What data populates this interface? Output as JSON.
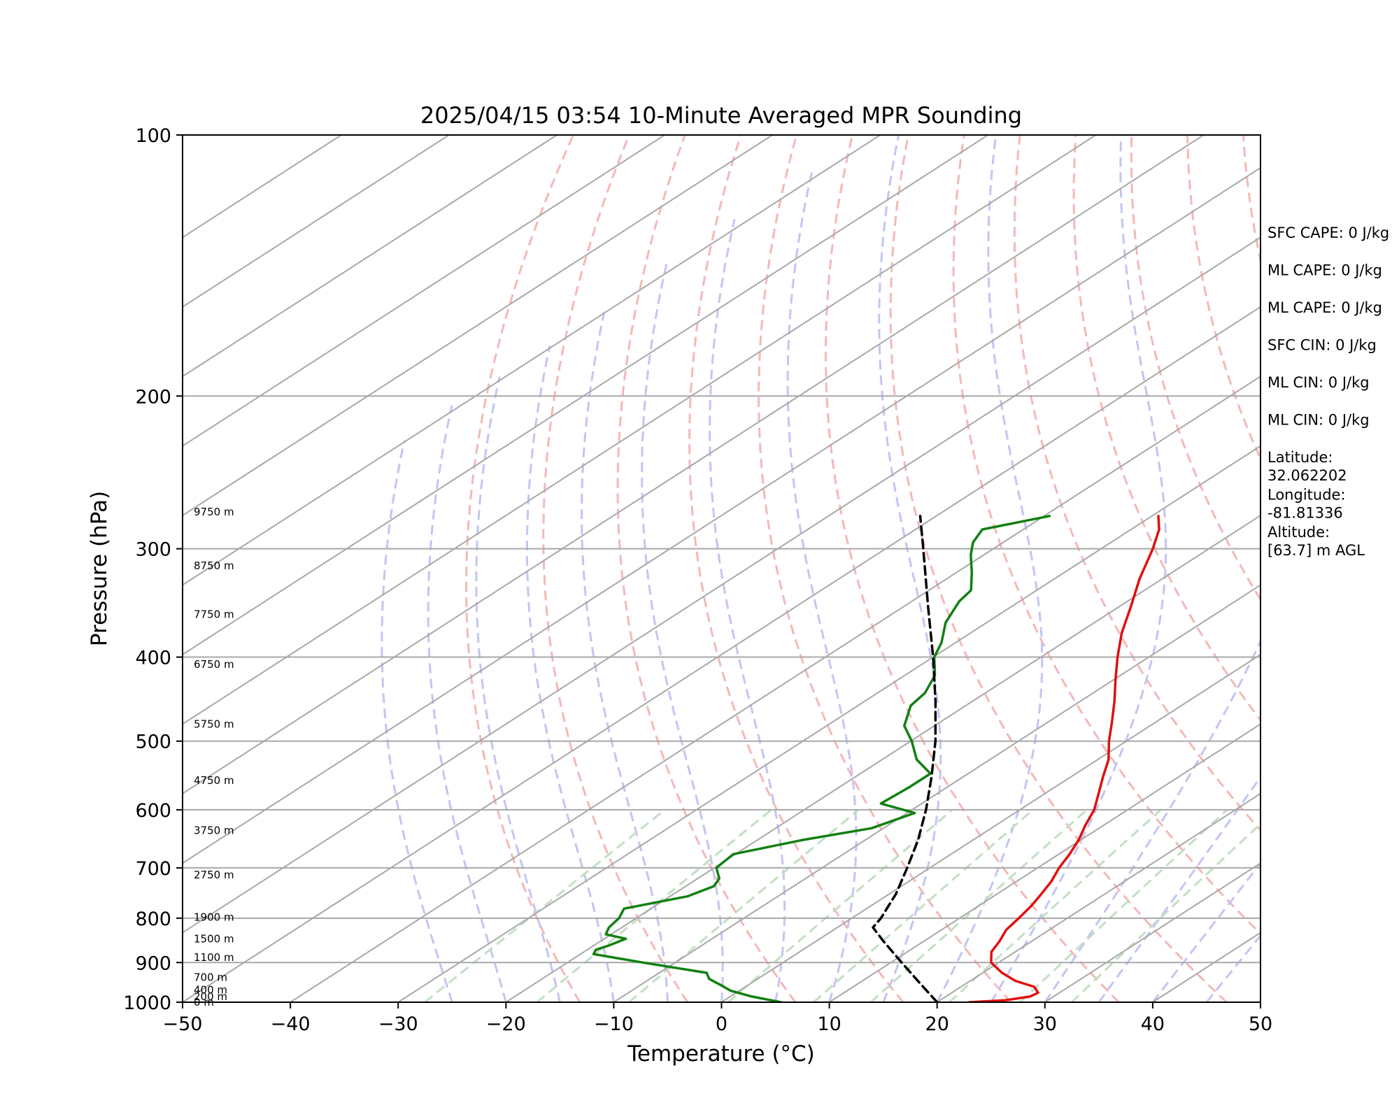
{
  "chart_data": {
    "type": "line",
    "diagram": "skew-t log-p",
    "title": "2025/04/15 03:54 10-Minute Averaged MPR Sounding",
    "xlabel": "Temperature (°C)",
    "ylabel": "Pressure (hPa)",
    "xlim": [
      -50,
      50
    ],
    "ylim": [
      1000,
      100
    ],
    "yscale": "log",
    "grid": true,
    "x_ticks": [
      "−50",
      "−40",
      "−30",
      "−20",
      "−10",
      "0",
      "10",
      "20",
      "30",
      "40",
      "50"
    ],
    "y_ticks": [
      "100",
      "200",
      "300",
      "400",
      "500",
      "600",
      "700",
      "800",
      "900",
      "1000"
    ],
    "colors": {
      "temperature": "#e01010",
      "dewpoint": "#118011",
      "parcel": "#000000",
      "dry_adiabats": "#f4b8b8",
      "moist_adiabats": "#c4c4f4",
      "mixing_ratio_lines": "#c2dfc2",
      "grid": "#a8a8a8"
    },
    "series": [
      {
        "key": "temperature",
        "points": [
          {
            "p": 1000,
            "t": 23.0
          },
          {
            "p": 995,
            "t": 26.0
          },
          {
            "p": 985,
            "t": 27.8
          },
          {
            "p": 975,
            "t": 28.0
          },
          {
            "p": 960,
            "t": 26.8
          },
          {
            "p": 945,
            "t": 24.2
          },
          {
            "p": 925,
            "t": 21.8
          },
          {
            "p": 900,
            "t": 19.3
          },
          {
            "p": 875,
            "t": 17.8
          },
          {
            "p": 850,
            "t": 17.0
          },
          {
            "p": 825,
            "t": 16.0
          },
          {
            "p": 800,
            "t": 15.5
          },
          {
            "p": 775,
            "t": 14.9
          },
          {
            "p": 750,
            "t": 14.1
          },
          {
            "p": 725,
            "t": 13.2
          },
          {
            "p": 700,
            "t": 12.0
          },
          {
            "p": 675,
            "t": 11.0
          },
          {
            "p": 650,
            "t": 9.8
          },
          {
            "p": 625,
            "t": 8.3
          },
          {
            "p": 600,
            "t": 6.9
          },
          {
            "p": 575,
            "t": 5.0
          },
          {
            "p": 550,
            "t": 3.0
          },
          {
            "p": 525,
            "t": 1.0
          },
          {
            "p": 500,
            "t": -1.6
          },
          {
            "p": 475,
            "t": -4.1
          },
          {
            "p": 450,
            "t": -6.8
          },
          {
            "p": 425,
            "t": -9.8
          },
          {
            "p": 400,
            "t": -12.9
          },
          {
            "p": 375,
            "t": -16.0
          },
          {
            "p": 350,
            "t": -18.9
          },
          {
            "p": 325,
            "t": -22.1
          },
          {
            "p": 300,
            "t": -25.2
          },
          {
            "p": 285,
            "t": -27.4
          },
          {
            "p": 275,
            "t": -29.4
          }
        ]
      },
      {
        "key": "dewpoint",
        "points": [
          {
            "p": 1000,
            "t": 5.5
          },
          {
            "p": 985,
            "t": 2.0
          },
          {
            "p": 970,
            "t": -0.8
          },
          {
            "p": 955,
            "t": -2.6
          },
          {
            "p": 940,
            "t": -4.5
          },
          {
            "p": 925,
            "t": -5.6
          },
          {
            "p": 900,
            "t": -13.0
          },
          {
            "p": 880,
            "t": -18.8
          },
          {
            "p": 870,
            "t": -19.2
          },
          {
            "p": 860,
            "t": -18.6
          },
          {
            "p": 845,
            "t": -18.0
          },
          {
            "p": 835,
            "t": -20.5
          },
          {
            "p": 820,
            "t": -21.2
          },
          {
            "p": 800,
            "t": -21.6
          },
          {
            "p": 780,
            "t": -22.5
          },
          {
            "p": 755,
            "t": -18.4
          },
          {
            "p": 735,
            "t": -17.4
          },
          {
            "p": 720,
            "t": -18.0
          },
          {
            "p": 700,
            "t": -19.8
          },
          {
            "p": 675,
            "t": -20.2
          },
          {
            "p": 650,
            "t": -15.8
          },
          {
            "p": 630,
            "t": -11.1
          },
          {
            "p": 605,
            "t": -9.3
          },
          {
            "p": 590,
            "t": -13.8
          },
          {
            "p": 565,
            "t": -13.5
          },
          {
            "p": 545,
            "t": -13.5
          },
          {
            "p": 525,
            "t": -16.8
          },
          {
            "p": 500,
            "t": -19.9
          },
          {
            "p": 480,
            "t": -22.8
          },
          {
            "p": 455,
            "t": -25.1
          },
          {
            "p": 440,
            "t": -25.6
          },
          {
            "p": 420,
            "t": -27.2
          },
          {
            "p": 400,
            "t": -29.9
          },
          {
            "p": 385,
            "t": -31.3
          },
          {
            "p": 365,
            "t": -33.8
          },
          {
            "p": 345,
            "t": -35.6
          },
          {
            "p": 335,
            "t": -36.1
          },
          {
            "p": 320,
            "t": -38.5
          },
          {
            "p": 305,
            "t": -41.2
          },
          {
            "p": 295,
            "t": -42.8
          },
          {
            "p": 285,
            "t": -43.8
          },
          {
            "p": 275,
            "t": -39.5
          }
        ]
      },
      {
        "key": "parcel",
        "points": [
          {
            "p": 1000,
            "t": 20.0
          },
          {
            "p": 950,
            "t": 15.6
          },
          {
            "p": 900,
            "t": 11.0
          },
          {
            "p": 850,
            "t": 6.2
          },
          {
            "p": 820,
            "t": 3.3
          },
          {
            "p": 800,
            "t": 2.7
          },
          {
            "p": 750,
            "t": 0.6
          },
          {
            "p": 700,
            "t": -2.1
          },
          {
            "p": 650,
            "t": -5.1
          },
          {
            "p": 600,
            "t": -8.7
          },
          {
            "p": 550,
            "t": -12.9
          },
          {
            "p": 500,
            "t": -17.7
          },
          {
            "p": 450,
            "t": -23.4
          },
          {
            "p": 400,
            "t": -30.0
          },
          {
            "p": 350,
            "t": -37.7
          },
          {
            "p": 300,
            "t": -46.5
          },
          {
            "p": 275,
            "t": -51.5
          }
        ]
      }
    ],
    "height_labels": [
      {
        "text": "9750 m",
        "p": 272
      },
      {
        "text": "8750 m",
        "p": 314
      },
      {
        "text": "7750 m",
        "p": 357
      },
      {
        "text": "6750 m",
        "p": 408
      },
      {
        "text": "5750 m",
        "p": 478
      },
      {
        "text": "4750 m",
        "p": 555
      },
      {
        "text": "3750 m",
        "p": 634
      },
      {
        "text": "2750 m",
        "p": 713
      },
      {
        "text": "1900 m",
        "p": 798
      },
      {
        "text": "1500 m",
        "p": 845
      },
      {
        "text": "1100 m",
        "p": 888
      },
      {
        "text": "700 m",
        "p": 936
      },
      {
        "text": "400 m",
        "p": 968
      },
      {
        "text": "200 m",
        "p": 985
      },
      {
        "text": "0 m",
        "p": 1000
      }
    ],
    "stats": [
      [
        "SFC CAPE: 0 J/kg"
      ],
      [
        "ML CAPE: 0 J/kg"
      ],
      [
        "ML CAPE: 0 J/kg"
      ],
      [
        "SFC CIN: 0 J/kg"
      ],
      [
        "ML CIN: 0 J/kg"
      ],
      [
        "ML CIN: 0 J/kg"
      ],
      [
        "Latitude:",
        "32.062202"
      ],
      [
        "Longitude:",
        "-81.81336"
      ],
      [
        "Altitude:",
        "[63.7] m AGL"
      ]
    ]
  }
}
